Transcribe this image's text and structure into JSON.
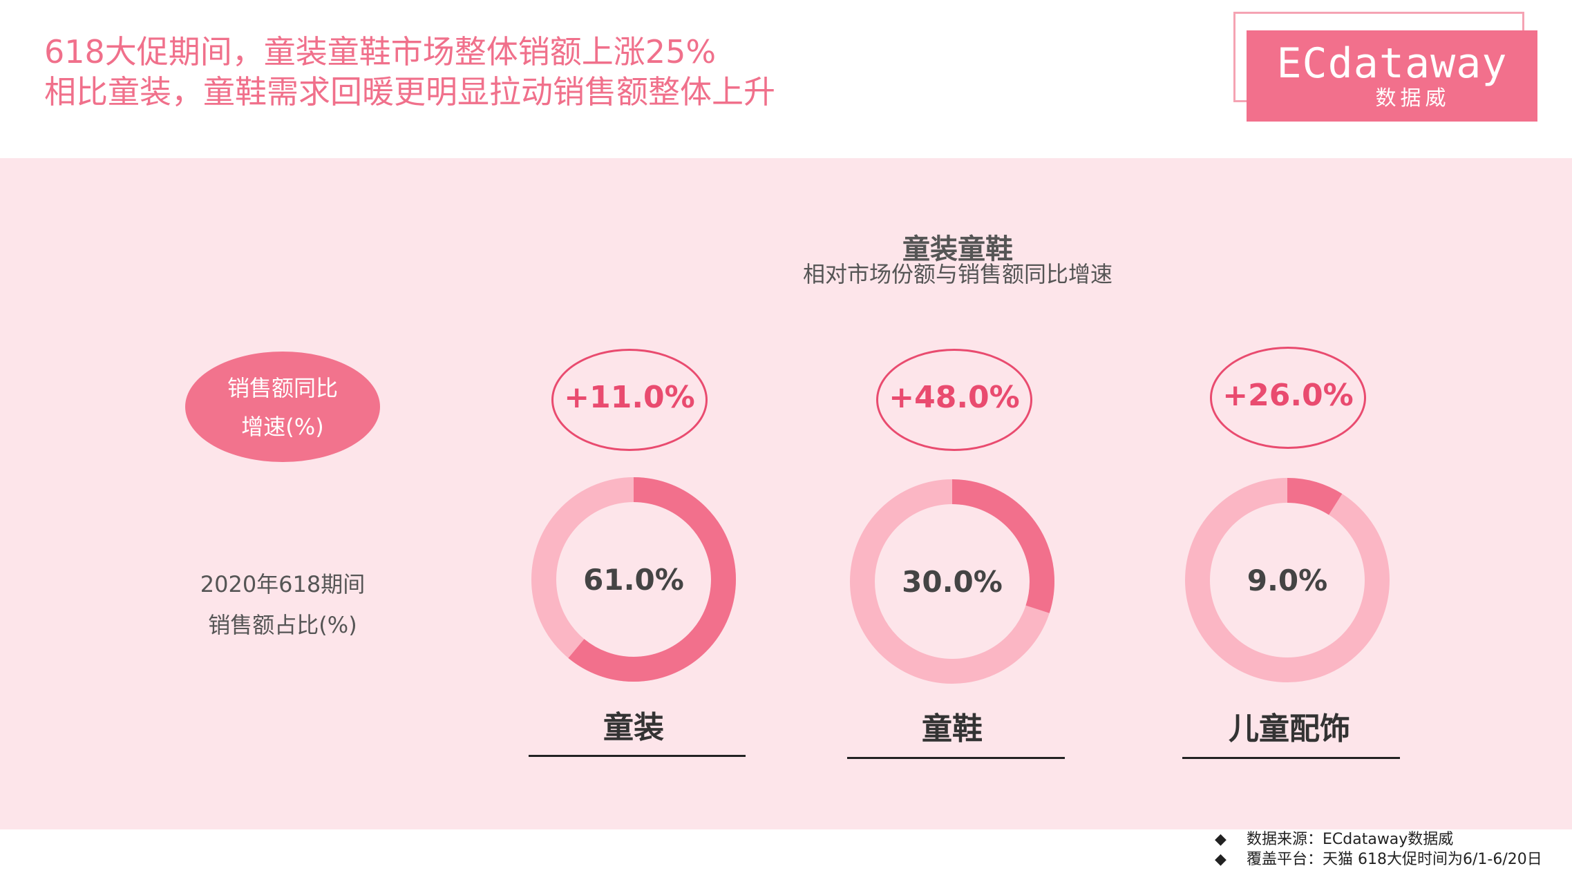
{
  "header": {
    "line1": "618大促期间，童装童鞋市场整体销额上涨25%",
    "line2": "相比童装，童鞋需求回暖更明显拉动销售额整体上升"
  },
  "logo": {
    "main": "ECdataway",
    "sub": "数据威"
  },
  "row_labels": {
    "growth_line1": "销售额同比",
    "growth_line2": "增速(%)",
    "share_line1": "2020年618期间",
    "share_line2": "销售额占比(%)"
  },
  "chart_data": {
    "type": "pie",
    "title": "童装童鞋",
    "subtitle": "相对市场份额与销售额同比增速",
    "categories": [
      "童装",
      "童鞋",
      "儿童配饰"
    ],
    "share_values": [
      61.0,
      30.0,
      9.0
    ],
    "share_labels": [
      "61.0%",
      "30.0%",
      "9.0%"
    ],
    "growth_values": [
      11.0,
      48.0,
      26.0
    ],
    "growth_labels": [
      "+11.0%",
      "+48.0%",
      "+26.0%"
    ],
    "colors": {
      "share": "#f2708c",
      "remainder": "#fbb6c4"
    }
  },
  "footer": {
    "bullet": "◆",
    "source": "数据来源：ECdataway数据威",
    "platform": "覆盖平台：天猫  618大促时间为6/1-6/20日"
  }
}
